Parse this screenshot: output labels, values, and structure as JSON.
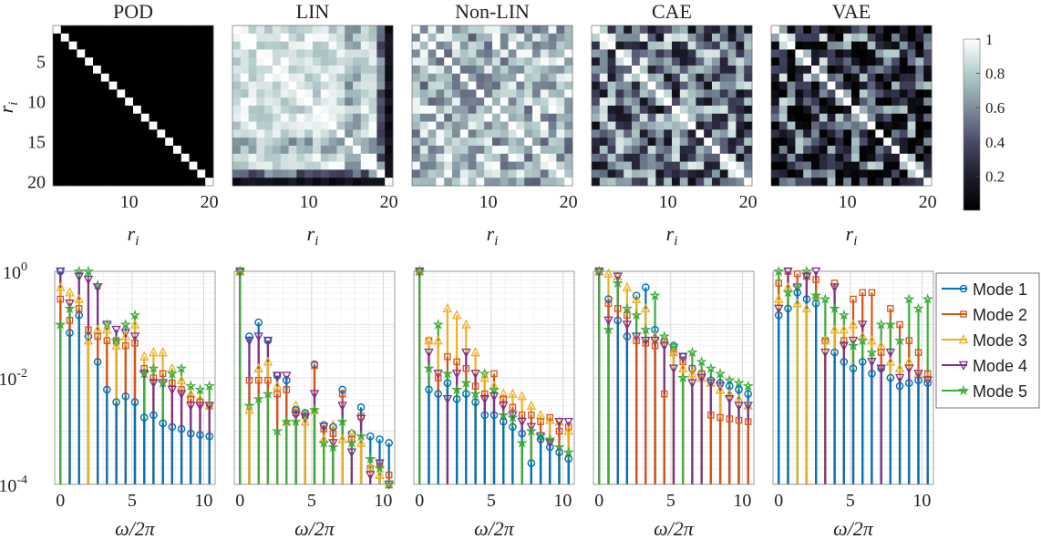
{
  "chart_data": [
    {
      "type": "heatmap",
      "title": "POD",
      "xlabel": "r",
      "xlabel_sub": "i",
      "ylabel": "r",
      "ylabel_sub": "i",
      "xticks": [
        10,
        20
      ],
      "yticks": [
        5,
        10,
        15,
        20
      ],
      "size": 20,
      "pattern": "identity",
      "description_values": "1 on diagonal, 0 elsewhere"
    },
    {
      "type": "heatmap",
      "title": "LIN",
      "xlabel": "r",
      "xlabel_sub": "i",
      "xticks": [
        10,
        20
      ],
      "size": 20,
      "pattern": "lin",
      "mean_offdiag": 0.85
    },
    {
      "type": "heatmap",
      "title": "Non-LIN",
      "xlabel": "r",
      "xlabel_sub": "i",
      "xticks": [
        10,
        20
      ],
      "size": 20,
      "pattern": "nonlin",
      "mean_offdiag": 0.7
    },
    {
      "type": "heatmap",
      "title": "CAE",
      "xlabel": "r",
      "xlabel_sub": "i",
      "xticks": [
        10,
        20
      ],
      "size": 20,
      "pattern": "cae",
      "mean_offdiag": 0.5
    },
    {
      "type": "heatmap",
      "title": "VAE",
      "xlabel": "r",
      "xlabel_sub": "i",
      "xticks": [
        10,
        20
      ],
      "size": 20,
      "pattern": "vae",
      "mean_offdiag": 0.3
    },
    {
      "type": "colorbar",
      "range": [
        0,
        1
      ],
      "ticks": [
        "0.2",
        "0.4",
        "0.6",
        "0.8",
        "1"
      ]
    },
    {
      "type": "stem",
      "panel": "POD",
      "xlabel": "ω/2π",
      "ylabel_ticks": [
        "10",
        "10",
        "10"
      ],
      "ylabel_exps": [
        "0",
        "-2",
        "-4"
      ],
      "xticks": [
        0,
        5,
        10
      ],
      "ylim": [
        0.0001,
        1
      ],
      "yscale": "log",
      "x": [
        0,
        0.65,
        1.3,
        1.95,
        2.6,
        3.25,
        3.9,
        4.55,
        5.2,
        5.85,
        6.5,
        7.15,
        7.8,
        8.45,
        9.1,
        9.75,
        10.4
      ],
      "series": [
        {
          "name": "Mode 1",
          "values": [
            1.0,
            0.07,
            0.15,
            0.06,
            0.02,
            0.006,
            0.0035,
            0.0045,
            0.0035,
            0.0018,
            0.002,
            0.0014,
            0.0012,
            0.0011,
            0.0009,
            0.00085,
            0.0008
          ]
        },
        {
          "name": "Mode 2",
          "values": [
            0.3,
            0.12,
            0.2,
            0.08,
            0.06,
            0.05,
            0.05,
            0.04,
            0.045,
            0.015,
            0.01,
            0.012,
            0.008,
            0.006,
            0.004,
            0.0035,
            0.003
          ]
        },
        {
          "name": "Mode 3",
          "values": [
            0.5,
            0.4,
            0.3,
            0.05,
            0.08,
            0.08,
            0.04,
            0.06,
            0.1,
            0.025,
            0.03,
            0.03,
            0.015,
            0.009,
            0.005,
            0.004,
            0.003
          ]
        },
        {
          "name": "Mode 4",
          "values": [
            1.0,
            0.25,
            0.8,
            0.7,
            0.5,
            0.1,
            0.08,
            0.07,
            0.06,
            0.012,
            0.008,
            0.008,
            0.006,
            0.005,
            0.003,
            0.003,
            0.003
          ]
        },
        {
          "name": "Mode 5",
          "values": [
            0.1,
            0.2,
            1.0,
            1.0,
            0.55,
            0.1,
            0.05,
            0.1,
            0.15,
            0.012,
            0.015,
            0.008,
            0.012,
            0.015,
            0.007,
            0.006,
            0.007
          ]
        }
      ]
    },
    {
      "type": "stem",
      "panel": "LIN",
      "xlabel": "ω/2π",
      "xticks": [
        0,
        5,
        10
      ],
      "ylim": [
        0.0001,
        1
      ],
      "yscale": "log",
      "x": [
        0,
        0.65,
        1.3,
        1.95,
        2.6,
        3.25,
        3.9,
        4.55,
        5.2,
        5.85,
        6.5,
        7.15,
        7.8,
        8.45,
        9.1,
        9.75,
        10.4
      ],
      "series": [
        {
          "name": "Mode 1",
          "values": [
            1.0,
            0.06,
            0.11,
            0.05,
            0.011,
            0.009,
            0.0025,
            0.0022,
            0.018,
            0.0013,
            0.0012,
            0.006,
            0.0009,
            0.0028,
            0.0008,
            0.0007,
            0.0006
          ]
        },
        {
          "name": "Mode 2",
          "values": [
            1.0,
            0.009,
            0.009,
            0.009,
            0.005,
            0.006,
            0.0022,
            0.002,
            0.017,
            0.0011,
            0.0009,
            0.005,
            0.0007,
            0.0019,
            0.0002,
            0.00025,
            0.00015
          ]
        },
        {
          "name": "Mode 3",
          "values": [
            1.0,
            0.0025,
            0.015,
            0.02,
            0.007,
            0.0015,
            0.003,
            0.0015,
            0.0025,
            0.0007,
            0.0013,
            0.0007,
            0.0009,
            0.0006,
            0.0002,
            0.00015,
            0.0001
          ]
        },
        {
          "name": "Mode 4",
          "values": [
            1.0,
            0.05,
            0.06,
            0.05,
            0.011,
            0.011,
            0.002,
            0.0018,
            0.005,
            0.0012,
            0.0006,
            0.003,
            0.0004,
            0.0017,
            0.00015,
            0.00025,
            0.0001
          ]
        },
        {
          "name": "Mode 5",
          "values": [
            1.0,
            0.003,
            0.004,
            0.005,
            0.001,
            0.0015,
            0.0015,
            0.002,
            0.0025,
            0.0006,
            0.0005,
            0.0015,
            0.0006,
            0.0008,
            0.0003,
            0.0002,
            0.0001
          ]
        }
      ]
    },
    {
      "type": "stem",
      "panel": "Non-LIN",
      "xlabel": "ω/2π",
      "xticks": [
        0,
        5,
        10
      ],
      "ylim": [
        0.0001,
        1
      ],
      "yscale": "log",
      "x": [
        0,
        0.65,
        1.3,
        1.95,
        2.6,
        3.25,
        3.9,
        4.55,
        5.2,
        5.85,
        6.5,
        7.15,
        7.8,
        8.45,
        9.1,
        9.75,
        10.4
      ],
      "series": [
        {
          "name": "Mode 1",
          "values": [
            1.0,
            0.006,
            0.005,
            0.008,
            0.004,
            0.005,
            0.0035,
            0.002,
            0.002,
            0.0015,
            0.0012,
            0.0009,
            0.00025,
            0.0007,
            0.0005,
            0.0004,
            0.0003
          ]
        },
        {
          "name": "Mode 2",
          "values": [
            1.0,
            0.05,
            0.01,
            0.025,
            0.02,
            0.015,
            0.007,
            0.005,
            0.012,
            0.004,
            0.0028,
            0.002,
            0.002,
            0.0015,
            0.0018,
            0.001,
            0.0012
          ]
        },
        {
          "name": "Mode 3",
          "values": [
            1.0,
            0.05,
            0.05,
            0.2,
            0.15,
            0.1,
            0.03,
            0.01,
            0.007,
            0.005,
            0.005,
            0.0045,
            0.003,
            0.002,
            0.0016,
            0.0015,
            0.001
          ]
        },
        {
          "name": "Mode 4",
          "values": [
            1.0,
            0.03,
            0.012,
            0.004,
            0.012,
            0.03,
            0.012,
            0.004,
            0.0045,
            0.003,
            0.002,
            0.0015,
            0.0012,
            0.0008,
            0.0006,
            0.0015,
            0.0015
          ]
        },
        {
          "name": "Mode 5",
          "values": [
            1.0,
            0.015,
            0.1,
            0.012,
            0.006,
            0.008,
            0.005,
            0.012,
            0.006,
            0.002,
            0.0018,
            0.0006,
            0.001,
            0.0008,
            0.0007,
            0.0005,
            0.0004
          ]
        }
      ]
    },
    {
      "type": "stem",
      "panel": "CAE",
      "xlabel": "ω/2π",
      "xticks": [
        0,
        5,
        10
      ],
      "ylim": [
        0.0001,
        1
      ],
      "yscale": "log",
      "x": [
        0,
        0.65,
        1.3,
        1.95,
        2.6,
        3.25,
        3.9,
        4.55,
        5.2,
        5.85,
        6.5,
        7.15,
        7.8,
        8.45,
        9.1,
        9.75,
        10.4
      ],
      "series": [
        {
          "name": "Mode 1",
          "values": [
            1.0,
            0.3,
            0.12,
            0.06,
            0.35,
            0.5,
            0.08,
            0.05,
            0.04,
            0.025,
            0.015,
            0.012,
            0.009,
            0.008,
            0.007,
            0.006,
            0.005
          ]
        },
        {
          "name": "Mode 2",
          "values": [
            1.0,
            0.25,
            0.2,
            0.15,
            0.05,
            0.045,
            0.04,
            0.005,
            0.03,
            0.02,
            0.015,
            0.012,
            0.002,
            0.0018,
            0.0017,
            0.0016,
            0.0015
          ]
        },
        {
          "name": "Mode 3",
          "values": [
            1.0,
            0.9,
            0.8,
            0.5,
            0.3,
            0.2,
            0.06,
            0.05,
            0.03,
            0.015,
            0.012,
            0.01,
            0.008,
            0.006,
            0.005,
            0.004,
            0.003
          ]
        },
        {
          "name": "Mode 4",
          "values": [
            1.0,
            0.12,
            0.8,
            0.1,
            0.06,
            0.05,
            0.05,
            0.04,
            0.015,
            0.025,
            0.008,
            0.01,
            0.008,
            0.007,
            0.004,
            0.003,
            0.003
          ]
        },
        {
          "name": "Mode 5",
          "values": [
            1.0,
            0.08,
            0.6,
            0.2,
            0.15,
            0.08,
            0.35,
            0.06,
            0.04,
            0.01,
            0.03,
            0.02,
            0.015,
            0.012,
            0.009,
            0.008,
            0.007
          ]
        }
      ]
    },
    {
      "type": "stem",
      "panel": "VAE",
      "xlabel": "ω/2π",
      "xticks": [
        0,
        5,
        10
      ],
      "ylim": [
        0.0001,
        1
      ],
      "yscale": "log",
      "x": [
        0,
        0.65,
        1.3,
        1.95,
        2.6,
        3.25,
        3.9,
        4.55,
        5.2,
        5.85,
        6.5,
        7.15,
        7.8,
        8.45,
        9.1,
        9.75,
        10.4
      ],
      "series": [
        {
          "name": "Mode 1",
          "values": [
            0.15,
            0.2,
            0.4,
            0.3,
            0.25,
            0.05,
            0.03,
            0.02,
            0.015,
            0.02,
            0.012,
            0.015,
            0.01,
            0.007,
            0.008,
            0.009,
            0.008
          ]
        },
        {
          "name": "Mode 2",
          "values": [
            0.6,
            1.0,
            0.9,
            0.8,
            0.7,
            0.05,
            0.6,
            0.05,
            0.3,
            0.4,
            0.4,
            0.03,
            0.2,
            0.1,
            0.05,
            0.03,
            0.012
          ]
        },
        {
          "name": "Mode 3",
          "values": [
            0.3,
            0.5,
            0.25,
            0.2,
            0.35,
            0.05,
            0.08,
            0.08,
            0.1,
            0.06,
            0.05,
            0.04,
            0.02,
            0.015,
            0.02,
            0.012,
            0.01
          ]
        },
        {
          "name": "Mode 4",
          "values": [
            0.2,
            1.0,
            0.5,
            0.8,
            1.0,
            0.03,
            0.5,
            0.04,
            0.05,
            0.1,
            0.02,
            0.015,
            0.03,
            0.01,
            0.015,
            0.012,
            0.009
          ]
        },
        {
          "name": "Mode 5",
          "values": [
            1.0,
            0.4,
            0.5,
            1.0,
            0.35,
            0.3,
            0.2,
            0.15,
            0.04,
            0.05,
            0.03,
            0.1,
            0.1,
            0.05,
            0.3,
            0.2,
            0.3
          ]
        }
      ]
    }
  ],
  "legend": {
    "items": [
      {
        "name": "Mode 1",
        "color": "#0072BD",
        "marker": "circle"
      },
      {
        "name": "Mode 2",
        "color": "#D95319",
        "marker": "square"
      },
      {
        "name": "Mode 3",
        "color": "#EDB120",
        "marker": "triangle-up"
      },
      {
        "name": "Mode 4",
        "color": "#7E2F8E",
        "marker": "triangle-down"
      },
      {
        "name": "Mode 5",
        "color": "#3BAE3B",
        "marker": "star"
      }
    ]
  }
}
